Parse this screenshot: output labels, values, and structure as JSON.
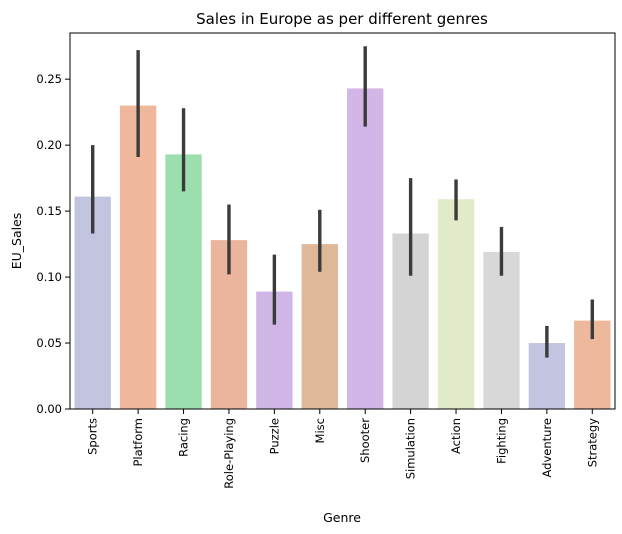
{
  "chart_data": {
    "type": "bar",
    "title": "Sales in Europe as per different genres",
    "xlabel": "Genre",
    "ylabel": "EU_Sales",
    "ylim": [
      0,
      0.285
    ],
    "yticks": [
      0.0,
      0.05,
      0.1,
      0.15,
      0.2,
      0.25
    ],
    "ytick_labels": [
      "0.00",
      "0.05",
      "0.10",
      "0.15",
      "0.20",
      "0.25"
    ],
    "grid": false,
    "categories": [
      "Sports",
      "Platform",
      "Racing",
      "Role-Playing",
      "Puzzle",
      "Misc",
      "Shooter",
      "Simulation",
      "Action",
      "Fighting",
      "Adventure",
      "Strategy"
    ],
    "values": [
      0.161,
      0.23,
      0.193,
      0.128,
      0.089,
      0.125,
      0.243,
      0.133,
      0.159,
      0.119,
      0.05,
      0.067
    ],
    "error_low": [
      0.133,
      0.191,
      0.165,
      0.102,
      0.064,
      0.104,
      0.214,
      0.101,
      0.143,
      0.101,
      0.039,
      0.053
    ],
    "error_high": [
      0.2,
      0.272,
      0.228,
      0.155,
      0.117,
      0.151,
      0.275,
      0.175,
      0.174,
      0.138,
      0.063,
      0.083
    ],
    "colors": [
      "#c3c4df",
      "#efb89c",
      "#9cdfae",
      "#eab59c",
      "#cfb6e6",
      "#deb898",
      "#d3b6e8",
      "#d4d4d4",
      "#e1eac9",
      "#d8d8d8",
      "#c3c4df",
      "#eeb89c"
    ]
  }
}
